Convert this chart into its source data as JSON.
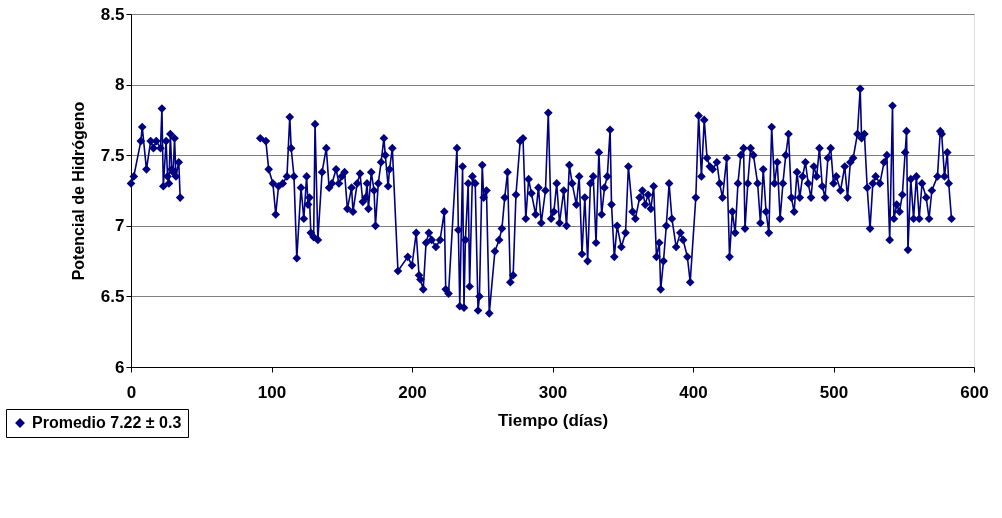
{
  "chart_data": {
    "type": "line",
    "xlabel": "Tiempo (días)",
    "ylabel": "Potencial de Hidrógeno",
    "x": [
      0,
      2,
      7,
      8,
      11,
      14,
      16,
      18,
      21,
      22,
      23,
      25,
      26,
      27,
      28,
      29,
      30,
      31,
      32,
      34,
      35,
      60,
      92,
      96,
      98,
      101,
      103,
      105,
      108,
      111,
      113,
      114,
      116,
      118,
      121,
      123,
      125,
      126,
      127,
      128,
      130,
      131,
      133,
      136,
      139,
      141,
      143,
      146,
      148,
      150,
      152,
      154,
      157,
      158,
      161,
      163,
      165,
      167,
      168,
      169,
      171,
      173,
      174,
      176,
      178,
      180,
      181,
      183,
      184,
      186,
      190,
      197,
      200,
      203,
      205,
      206,
      208,
      210,
      212,
      214,
      217,
      220,
      223,
      224,
      226,
      232,
      233,
      234,
      236,
      237,
      238,
      240,
      241,
      243,
      245,
      247,
      248,
      250,
      251,
      253,
      255,
      259,
      262,
      264,
      266,
      268,
      270,
      272,
      274,
      277,
      279,
      281,
      283,
      285,
      288,
      290,
      292,
      295,
      297,
      299,
      301,
      303,
      305,
      308,
      310,
      312,
      314,
      317,
      319,
      321,
      323,
      325,
      327,
      329,
      331,
      333,
      335,
      337,
      339,
      341,
      342,
      344,
      346,
      349,
      352,
      354,
      357,
      359,
      362,
      364,
      366,
      368,
      370,
      372,
      374,
      376,
      377,
      379,
      381,
      383,
      385,
      388,
      391,
      393,
      396,
      398,
      402,
      404,
      406,
      408,
      410,
      412,
      414,
      417,
      419,
      421,
      424,
      426,
      428,
      430,
      432,
      434,
      436,
      437,
      439,
      441,
      443,
      446,
      448,
      450,
      452,
      454,
      456,
      458,
      460,
      462,
      464,
      466,
      468,
      470,
      472,
      474,
      476,
      478,
      480,
      482,
      484,
      486,
      488,
      490,
      492,
      494,
      496,
      498,
      500,
      502,
      505,
      508,
      510,
      512,
      514,
      517,
      519,
      520,
      522,
      524,
      526,
      528,
      530,
      533,
      536,
      538,
      540,
      542,
      543,
      545,
      547,
      549,
      551,
      552,
      553,
      555,
      557,
      559,
      561,
      563,
      566,
      568,
      570,
      574,
      576,
      577,
      579,
      581,
      582,
      584
    ],
    "series": [
      {
        "name": "Promedio 7.22 ± 0.3",
        "color": "#000080",
        "values": [
          7.3,
          7.35,
          7.6,
          7.7,
          7.4,
          7.6,
          7.55,
          7.6,
          7.55,
          7.83,
          7.28,
          7.6,
          7.35,
          7.3,
          7.65,
          7.4,
          7.38,
          7.62,
          7.35,
          7.45,
          7.2,
          null,
          7.62,
          7.6,
          7.4,
          7.3,
          7.08,
          7.28,
          7.3,
          7.35,
          7.77,
          7.55,
          7.35,
          6.77,
          7.27,
          7.05,
          7.35,
          7.15,
          7.2,
          6.95,
          6.92,
          7.72,
          6.9,
          7.38,
          7.55,
          7.27,
          7.3,
          7.4,
          7.3,
          7.35,
          7.38,
          7.12,
          7.27,
          7.1,
          7.3,
          7.37,
          7.17,
          7.2,
          7.3,
          7.12,
          7.38,
          7.25,
          7.0,
          7.3,
          7.45,
          7.62,
          7.5,
          7.28,
          7.4,
          7.55,
          6.68,
          6.78,
          6.72,
          6.95,
          6.65,
          6.62,
          6.55,
          6.88,
          6.95,
          6.9,
          6.85,
          6.9,
          7.1,
          6.55,
          6.52,
          7.55,
          6.97,
          6.43,
          7.42,
          6.42,
          6.9,
          7.3,
          6.57,
          7.35,
          7.3,
          6.4,
          6.5,
          7.43,
          7.2,
          7.25,
          6.38,
          6.82,
          6.9,
          6.98,
          7.2,
          7.38,
          6.6,
          6.65,
          7.22,
          7.6,
          7.62,
          7.05,
          7.33,
          7.23,
          7.08,
          7.27,
          7.02,
          7.25,
          7.8,
          7.05,
          7.1,
          7.3,
          7.02,
          7.25,
          7.0,
          7.43,
          7.3,
          7.15,
          7.35,
          6.8,
          7.2,
          6.75,
          7.3,
          7.35,
          6.88,
          7.52,
          7.08,
          7.27,
          7.35,
          7.68,
          7.15,
          6.78,
          7.0,
          6.85,
          6.95,
          7.42,
          7.1,
          7.05,
          7.2,
          7.25,
          7.15,
          7.22,
          7.12,
          7.28,
          6.78,
          6.88,
          6.55,
          6.75,
          7.0,
          7.3,
          7.05,
          6.85,
          6.95,
          6.9,
          6.78,
          6.6,
          7.2,
          7.78,
          7.35,
          7.75,
          7.48,
          7.42,
          7.4,
          7.45,
          7.3,
          7.2,
          7.48,
          6.78,
          7.1,
          6.95,
          7.3,
          7.5,
          7.55,
          6.98,
          7.3,
          7.55,
          7.5,
          7.3,
          7.02,
          7.4,
          7.1,
          6.95,
          7.7,
          7.3,
          7.45,
          7.05,
          7.3,
          7.5,
          7.65,
          7.2,
          7.1,
          7.38,
          7.2,
          7.35,
          7.45,
          7.3,
          7.2,
          7.42,
          7.35,
          7.55,
          7.28,
          7.2,
          7.48,
          7.55,
          7.3,
          7.35,
          7.25,
          7.42,
          7.2,
          7.45,
          7.48,
          7.65,
          7.97,
          7.62,
          7.65,
          7.27,
          6.98,
          7.3,
          7.35,
          7.3,
          7.45,
          7.5,
          6.9,
          7.85,
          7.05,
          7.15,
          7.1,
          7.22,
          7.52,
          7.67,
          6.83,
          7.33,
          7.05,
          7.35,
          7.05,
          7.3,
          7.2,
          7.05,
          7.25,
          7.35,
          7.67,
          7.65,
          7.35,
          7.52,
          7.3,
          7.05
        ]
      }
    ],
    "xlim": [
      0,
      600
    ],
    "xticks": [
      0,
      100,
      200,
      300,
      400,
      500,
      600
    ],
    "ylim": [
      6,
      8.5
    ],
    "yticks": [
      6,
      6.5,
      7,
      7.5,
      8,
      8.5
    ],
    "grid": "y",
    "legend": "bottom left",
    "marker": "diamond",
    "line_style": "solid"
  }
}
